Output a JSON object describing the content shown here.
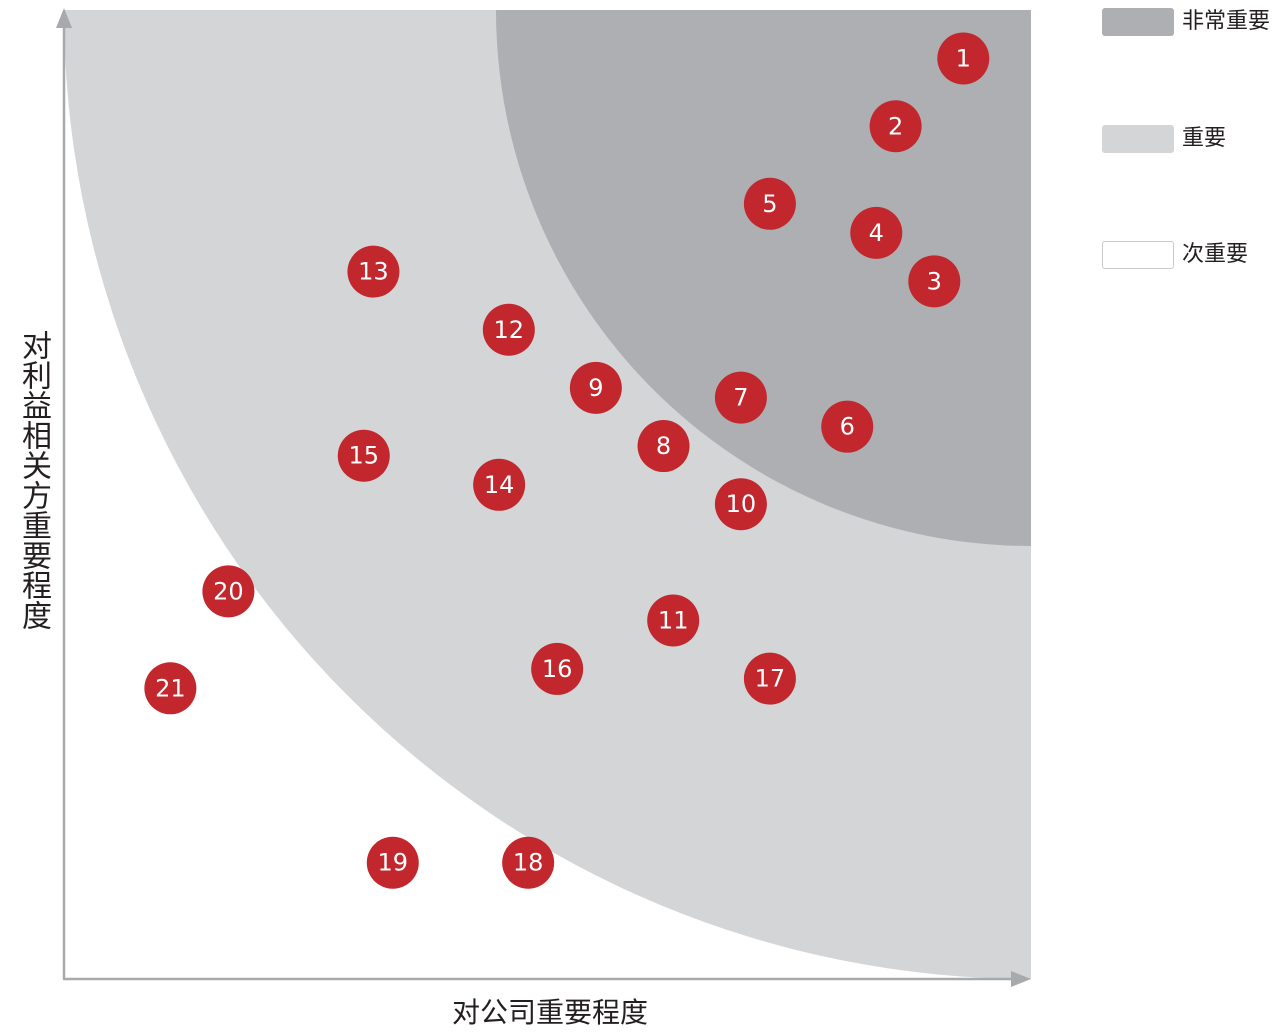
{
  "legend": {
    "items": [
      {
        "label": "非常重要",
        "color": "#aeafb2"
      },
      {
        "label": "重要",
        "color": "#d4d5d7"
      },
      {
        "label": "次重要",
        "color": "#ffffff"
      }
    ]
  },
  "chart_data": {
    "type": "scatter",
    "title": "",
    "xlabel": "对公司重要程度",
    "ylabel": "对利益相关方重要程度",
    "xlim": [
      0,
      100
    ],
    "ylim": [
      0,
      100
    ],
    "grid": false,
    "legend_position": "top-right",
    "marker_color": "#c1272d",
    "zones": [
      {
        "name": "非常重要",
        "color": "#aeafb2"
      },
      {
        "name": "重要",
        "color": "#d4d5d7"
      },
      {
        "name": "次重要",
        "color": "#ffffff"
      }
    ],
    "points": [
      {
        "label": "1",
        "x": 93,
        "y": 95
      },
      {
        "label": "2",
        "x": 86,
        "y": 88
      },
      {
        "label": "3",
        "x": 90,
        "y": 72
      },
      {
        "label": "4",
        "x": 84,
        "y": 77
      },
      {
        "label": "5",
        "x": 73,
        "y": 80
      },
      {
        "label": "6",
        "x": 81,
        "y": 57
      },
      {
        "label": "7",
        "x": 70,
        "y": 60
      },
      {
        "label": "8",
        "x": 62,
        "y": 55
      },
      {
        "label": "9",
        "x": 55,
        "y": 61
      },
      {
        "label": "10",
        "x": 70,
        "y": 49
      },
      {
        "label": "11",
        "x": 63,
        "y": 37
      },
      {
        "label": "12",
        "x": 46,
        "y": 67
      },
      {
        "label": "13",
        "x": 32,
        "y": 73
      },
      {
        "label": "14",
        "x": 45,
        "y": 51
      },
      {
        "label": "15",
        "x": 31,
        "y": 54
      },
      {
        "label": "16",
        "x": 51,
        "y": 32
      },
      {
        "label": "17",
        "x": 73,
        "y": 31
      },
      {
        "label": "18",
        "x": 48,
        "y": 12
      },
      {
        "label": "19",
        "x": 34,
        "y": 12
      },
      {
        "label": "20",
        "x": 17,
        "y": 40
      },
      {
        "label": "21",
        "x": 11,
        "y": 30
      }
    ]
  }
}
